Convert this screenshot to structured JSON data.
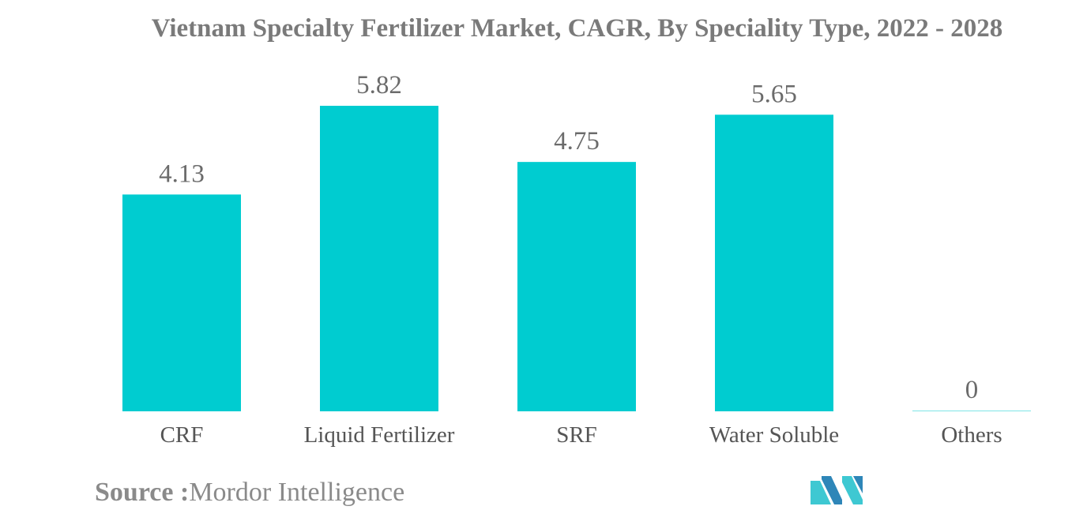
{
  "chart_data": {
    "type": "bar",
    "title": "Vietnam Specialty Fertilizer Market, CAGR, By Speciality Type, 2022 - 2028",
    "categories": [
      "CRF",
      "Liquid Fertilizer",
      "SRF",
      "Water Soluble",
      "Others"
    ],
    "values": [
      4.13,
      5.82,
      4.75,
      5.65,
      0
    ],
    "value_labels": [
      "4.13",
      "5.82",
      "4.75",
      "5.65",
      "0"
    ],
    "xlabel": "",
    "ylabel": "",
    "ylim": [
      0,
      5.82
    ],
    "grid": false,
    "legend": "none"
  },
  "colors": {
    "bar": "#00ccd0",
    "title": "#7a7a7a",
    "value_label": "#6b6b6b",
    "category_label": "#555555",
    "logo_dark": "#2e86b8",
    "logo_light": "#3ec8d2"
  },
  "source": {
    "label": "Source :",
    "text": "Mordor Intelligence"
  },
  "logo": {
    "icon": "mordor-intelligence-logo-icon"
  }
}
